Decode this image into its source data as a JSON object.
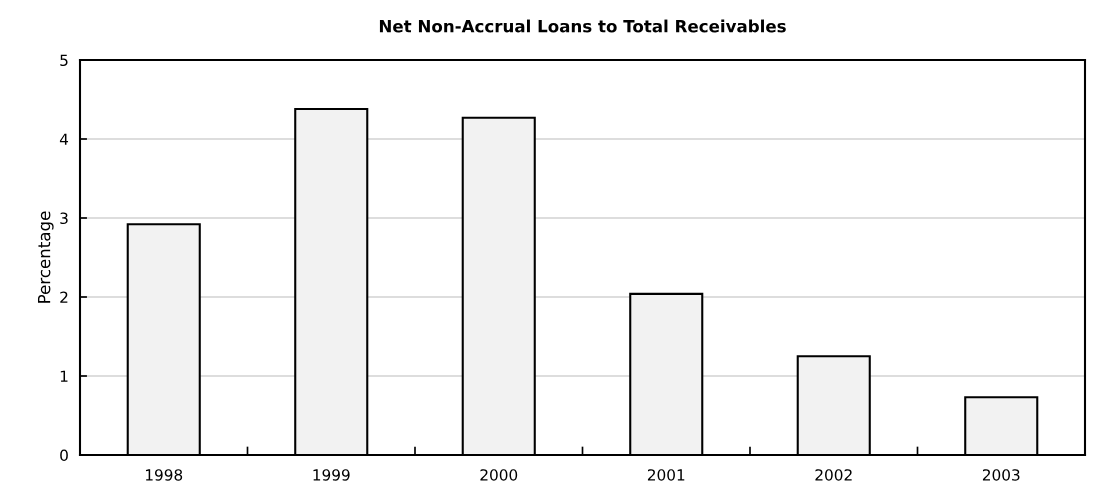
{
  "chart_data": {
    "type": "bar",
    "title": "Net Non-Accrual Loans to Total Receivables",
    "ylabel": "Percentage",
    "categories": [
      "1998",
      "1999",
      "2000",
      "2001",
      "2002",
      "2003"
    ],
    "values": [
      2.92,
      4.38,
      4.27,
      2.04,
      1.25,
      0.73
    ],
    "color": "#f2f2f2",
    "ylim": [
      0,
      5
    ],
    "yticks": [
      0,
      1,
      2,
      3,
      4,
      5
    ],
    "grid": "y"
  }
}
